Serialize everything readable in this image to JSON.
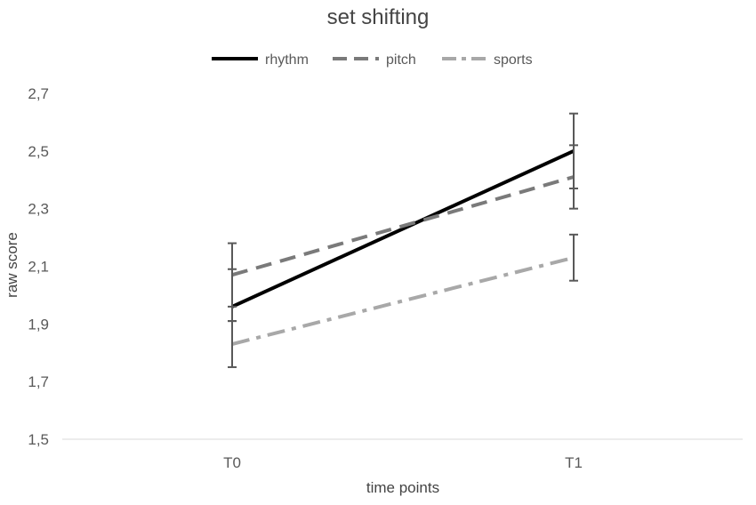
{
  "chart_data": {
    "type": "line",
    "title": "set shifting",
    "xlabel": "time points",
    "ylabel": "raw score",
    "categories": [
      "T0",
      "T1"
    ],
    "ylim": [
      1.5,
      2.7
    ],
    "yticks": [
      "2,7",
      "2,5",
      "2,3",
      "2,1",
      "1,9",
      "1,7",
      "1,5"
    ],
    "ytick_values": [
      2.7,
      2.5,
      2.3,
      2.1,
      1.9,
      1.7,
      1.5
    ],
    "grid": false,
    "legend_position": "top",
    "series": [
      {
        "name": "rhythm",
        "values": [
          1.96,
          2.5
        ],
        "color": "#000000",
        "dash": "solid",
        "error_low": [
          1.91,
          2.37
        ],
        "error_high": [
          2.09,
          2.63
        ]
      },
      {
        "name": "pitch",
        "values": [
          2.07,
          2.41
        ],
        "color": "#7a7a7a",
        "dash": "dashed",
        "error_low": [
          1.96,
          2.3
        ],
        "error_high": [
          2.18,
          2.52
        ]
      },
      {
        "name": "sports",
        "values": [
          1.83,
          2.13
        ],
        "color": "#a8a8a8",
        "dash": "dash-dot",
        "error_low": [
          1.75,
          2.05
        ],
        "error_high": [
          1.91,
          2.21
        ]
      }
    ]
  }
}
